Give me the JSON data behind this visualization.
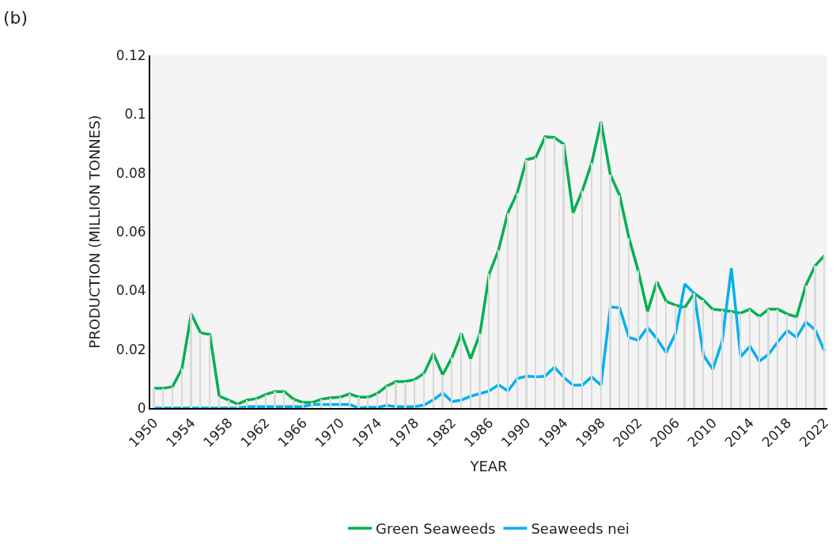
{
  "chart_data": {
    "type": "line",
    "annotations": [
      "(b)"
    ],
    "xlabel": "YEAR",
    "ylabel": "PRODUCTION (MILLION TONNES)",
    "x": [
      1950,
      1951,
      1952,
      1953,
      1954,
      1955,
      1956,
      1957,
      1958,
      1959,
      1960,
      1961,
      1962,
      1963,
      1964,
      1965,
      1966,
      1967,
      1968,
      1969,
      1970,
      1971,
      1972,
      1973,
      1974,
      1975,
      1976,
      1977,
      1978,
      1979,
      1980,
      1981,
      1982,
      1983,
      1984,
      1985,
      1986,
      1987,
      1988,
      1989,
      1990,
      1991,
      1992,
      1993,
      1994,
      1995,
      1996,
      1997,
      1998,
      1999,
      2000,
      2001,
      2002,
      2003,
      2004,
      2005,
      2006,
      2007,
      2008,
      2009,
      2010,
      2011,
      2012,
      2013,
      2014,
      2015,
      2016,
      2017,
      2018,
      2019,
      2020,
      2021,
      2022
    ],
    "series": [
      {
        "type": "bar",
        "color": "#d9d9d9",
        "values": [
          0.0067,
          0.0067,
          0.0073,
          0.0134,
          0.032,
          0.0256,
          0.025,
          0.004,
          0.0027,
          0.0013,
          0.0027,
          0.0032,
          0.0046,
          0.0056,
          0.0056,
          0.003,
          0.0019,
          0.0019,
          0.003,
          0.0035,
          0.0037,
          0.0048,
          0.0037,
          0.0037,
          0.005,
          0.0075,
          0.009,
          0.009,
          0.0097,
          0.0118,
          0.0186,
          0.0113,
          0.0172,
          0.0253,
          0.0167,
          0.0253,
          0.0457,
          0.0538,
          0.0664,
          0.0732,
          0.0845,
          0.0853,
          0.0923,
          0.092,
          0.0898,
          0.0664,
          0.074,
          0.0834,
          0.0974,
          0.0794,
          0.0724,
          0.0579,
          0.0467,
          0.0328,
          0.043,
          0.0363,
          0.035,
          0.0342,
          0.039,
          0.0368,
          0.0336,
          0.0333,
          0.0328,
          0.0323,
          0.0336,
          0.0312,
          0.0336,
          0.0336,
          0.032,
          0.031,
          0.0418,
          0.0484,
          0.0519
        ]
      },
      {
        "name": "Green Seaweeds",
        "color": "#00b050",
        "values": [
          0.0067,
          0.0067,
          0.0073,
          0.0134,
          0.032,
          0.0256,
          0.025,
          0.004,
          0.0027,
          0.0013,
          0.0027,
          0.0032,
          0.0046,
          0.0056,
          0.0056,
          0.003,
          0.0019,
          0.0019,
          0.003,
          0.0035,
          0.0037,
          0.0048,
          0.0037,
          0.0037,
          0.005,
          0.0075,
          0.009,
          0.009,
          0.0097,
          0.0118,
          0.0186,
          0.0113,
          0.0172,
          0.0253,
          0.0167,
          0.0253,
          0.0457,
          0.0538,
          0.0664,
          0.0732,
          0.0845,
          0.0853,
          0.0923,
          0.092,
          0.0898,
          0.0664,
          0.074,
          0.0834,
          0.0974,
          0.0794,
          0.0724,
          0.0579,
          0.0467,
          0.0328,
          0.043,
          0.0363,
          0.035,
          0.0342,
          0.039,
          0.0368,
          0.0336,
          0.0333,
          0.0328,
          0.0323,
          0.0336,
          0.0312,
          0.0336,
          0.0336,
          0.032,
          0.031,
          0.0418,
          0.0484,
          0.0519
        ]
      },
      {
        "name": "Seaweeds nei",
        "color": "#00b0f0",
        "values": [
          0,
          0,
          0,
          0,
          0,
          0,
          0,
          0,
          0,
          0,
          0.0005,
          0.0005,
          0.0005,
          0.0005,
          0.0005,
          0.0005,
          0.0005,
          0.0012,
          0.0012,
          0.0012,
          0.0012,
          0.0012,
          0,
          0.0003,
          0.0002,
          0.0009,
          0.0005,
          0.0005,
          0.0005,
          0.001,
          0.0028,
          0.0051,
          0.0022,
          0.0027,
          0.004,
          0.0049,
          0.0058,
          0.0079,
          0.0058,
          0.01,
          0.0108,
          0.0106,
          0.0108,
          0.0139,
          0.0104,
          0.0078,
          0.0078,
          0.0106,
          0.0078,
          0.0344,
          0.0341,
          0.024,
          0.0231,
          0.0274,
          0.0236,
          0.0188,
          0.0253,
          0.0422,
          0.039,
          0.018,
          0.0132,
          0.0226,
          0.0476,
          0.0175,
          0.021,
          0.0159,
          0.0183,
          0.0226,
          0.0264,
          0.024,
          0.0293,
          0.0266,
          0.0194
        ]
      }
    ],
    "xlim": [
      1949.6,
      2022.3
    ],
    "xticks": [
      1950,
      1954,
      1958,
      1962,
      1966,
      1970,
      1974,
      1978,
      1982,
      1986,
      1990,
      1994,
      1998,
      2002,
      2006,
      2010,
      2014,
      2018,
      2022
    ],
    "ylim": [
      0,
      0.12
    ],
    "yticks": [
      0,
      0.02,
      0.04,
      0.06,
      0.08,
      0.1,
      0.12
    ],
    "grid": false,
    "legend": "bottom",
    "line_style": "solid",
    "marker": "none"
  }
}
